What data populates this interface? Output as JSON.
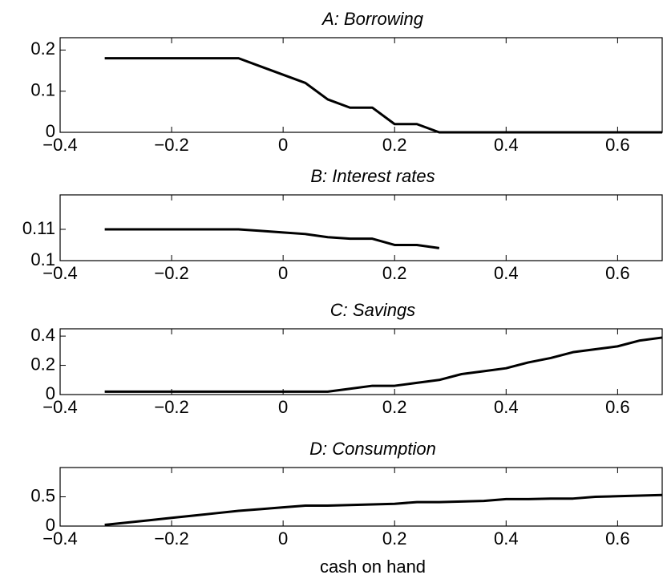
{
  "chart_data": [
    {
      "type": "line",
      "title": "A: Borrowing",
      "color": "#000000",
      "x": [
        -0.32,
        -0.28,
        -0.24,
        -0.2,
        -0.16,
        -0.12,
        -0.08,
        -0.04,
        0,
        0.04,
        0.08,
        0.12,
        0.16,
        0.2,
        0.24,
        0.28,
        0.32,
        0.36,
        0.4,
        0.44,
        0.48,
        0.52,
        0.56,
        0.6,
        0.64,
        0.68
      ],
      "values": [
        0.18,
        0.18,
        0.18,
        0.18,
        0.18,
        0.18,
        0.18,
        0.16,
        0.14,
        0.12,
        0.08,
        0.06,
        0.06,
        0.02,
        0.02,
        0,
        0,
        0,
        0,
        0,
        0,
        0,
        0,
        0,
        0,
        0
      ],
      "xlim": [
        -0.4,
        0.68
      ],
      "ylim": [
        0,
        0.23
      ],
      "xticks": [
        {
          "value": -0.4,
          "label": "−0.4"
        },
        {
          "value": -0.2,
          "label": "−0.2"
        },
        0,
        0.2,
        0.4,
        0.6
      ],
      "yticks": [
        0,
        0.1,
        0.2
      ]
    },
    {
      "type": "line",
      "title": "B: Interest rates",
      "color": "#000000",
      "x": [
        -0.32,
        -0.28,
        -0.24,
        -0.2,
        -0.16,
        -0.12,
        -0.08,
        -0.04,
        0,
        0.04,
        0.08,
        0.12,
        0.16,
        0.2,
        0.24,
        0.28,
        0.32,
        0.36,
        0.4,
        0.44,
        0.48,
        0.52,
        0.56,
        0.6,
        0.64,
        0.68
      ],
      "values": [
        0.11,
        0.11,
        0.11,
        0.11,
        0.11,
        0.11,
        0.11,
        0.1095,
        0.109,
        0.1085,
        0.1075,
        0.107,
        0.107,
        0.105,
        0.105,
        0.104,
        null,
        null,
        null,
        null,
        null,
        null,
        null,
        null,
        null,
        null
      ],
      "xlim": [
        -0.4,
        0.68
      ],
      "ylim": [
        0.1,
        0.121
      ],
      "xticks": [
        {
          "value": -0.4,
          "label": "−0.4"
        },
        {
          "value": -0.2,
          "label": "−0.2"
        },
        0,
        0.2,
        0.4,
        0.6
      ],
      "yticks": [
        0.1,
        0.11
      ]
    },
    {
      "type": "line",
      "title": "C: Savings",
      "color": "#000000",
      "x": [
        -0.32,
        -0.28,
        -0.24,
        -0.2,
        -0.16,
        -0.12,
        -0.08,
        -0.04,
        0,
        0.04,
        0.08,
        0.12,
        0.16,
        0.2,
        0.24,
        0.28,
        0.32,
        0.36,
        0.4,
        0.44,
        0.48,
        0.52,
        0.56,
        0.6,
        0.64,
        0.68
      ],
      "values": [
        0.02,
        0.02,
        0.02,
        0.02,
        0.02,
        0.02,
        0.02,
        0.02,
        0.02,
        0.02,
        0.02,
        0.04,
        0.06,
        0.06,
        0.08,
        0.1,
        0.14,
        0.16,
        0.18,
        0.22,
        0.25,
        0.29,
        0.31,
        0.33,
        0.37,
        0.39
      ],
      "xlim": [
        -0.4,
        0.68
      ],
      "ylim": [
        0,
        0.45
      ],
      "xticks": [
        {
          "value": -0.4,
          "label": "−0.4"
        },
        {
          "value": -0.2,
          "label": "−0.2"
        },
        0,
        0.2,
        0.4,
        0.6
      ],
      "yticks": [
        0,
        0.2,
        0.4
      ]
    },
    {
      "type": "line",
      "title": "D: Consumption",
      "xlabel": "cash on hand",
      "color": "#000000",
      "x": [
        -0.32,
        -0.28,
        -0.24,
        -0.2,
        -0.16,
        -0.12,
        -0.08,
        -0.04,
        0,
        0.04,
        0.08,
        0.12,
        0.16,
        0.2,
        0.24,
        0.28,
        0.32,
        0.36,
        0.4,
        0.44,
        0.48,
        0.52,
        0.56,
        0.6,
        0.64,
        0.68
      ],
      "values": [
        0.02,
        0.06,
        0.1,
        0.14,
        0.18,
        0.22,
        0.26,
        0.29,
        0.32,
        0.35,
        0.35,
        0.36,
        0.37,
        0.38,
        0.41,
        0.41,
        0.42,
        0.43,
        0.46,
        0.46,
        0.47,
        0.47,
        0.5,
        0.51,
        0.52,
        0.53
      ],
      "xlim": [
        -0.4,
        0.68
      ],
      "ylim": [
        0,
        1
      ],
      "xticks": [
        {
          "value": -0.4,
          "label": "−0.4"
        },
        {
          "value": -0.2,
          "label": "−0.2"
        },
        0,
        0.2,
        0.4,
        0.6
      ],
      "yticks": [
        0,
        0.5
      ]
    }
  ]
}
